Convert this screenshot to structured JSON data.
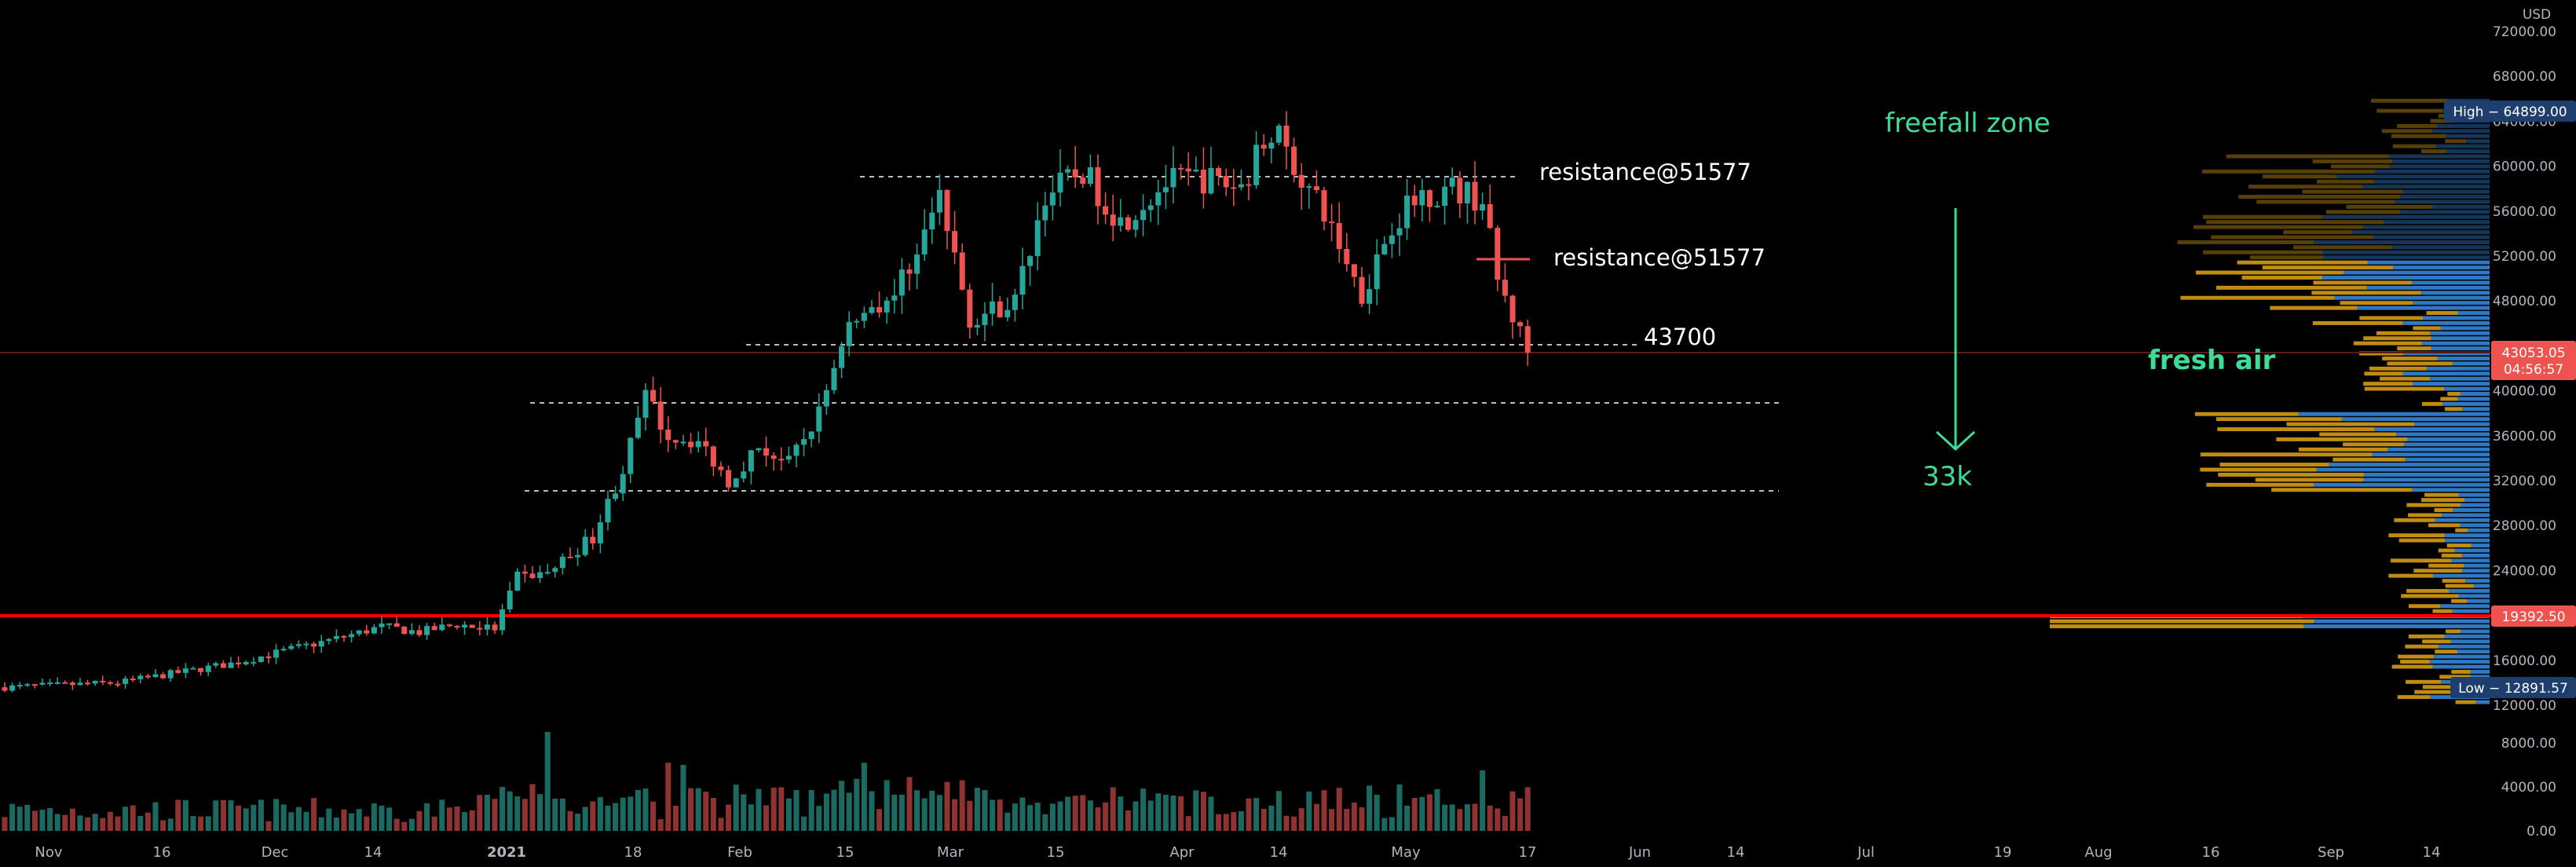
{
  "chart_data": {
    "type": "candlestick",
    "title": "",
    "xlabel": "",
    "ylabel": "",
    "currency": "USD",
    "ylim": [
      0,
      76000
    ],
    "price_ylim": [
      12000,
      76000
    ],
    "volume_ylim": [
      0,
      9500
    ],
    "price_ticks": [
      "72000.00",
      "68000.00",
      "64000.00",
      "60000.00",
      "56000.00",
      "52000.00",
      "48000.00",
      "44000.00",
      "40000.00",
      "36000.00",
      "32000.00",
      "28000.00",
      "24000.00",
      "20000.00",
      "16000.00",
      "12000.00"
    ],
    "volume_ticks": [
      "8000.00",
      "4000.00",
      "0.00"
    ],
    "x_ticks": [
      "Nov",
      "16",
      "Dec",
      "14",
      "2021",
      "18",
      "Feb",
      "15",
      "Mar",
      "15",
      "Apr",
      "14",
      "May",
      "17",
      "Jun",
      "14",
      "Jul",
      "19",
      "Aug",
      "16",
      "Sep",
      "14"
    ],
    "price_labels": {
      "high": "High − 64899.00",
      "current_price": "43053.05",
      "countdown": "04:56:57",
      "support_level": "19392.50",
      "low": "Low − 12891.57"
    },
    "key_prices": {
      "high": 64899.0,
      "current": 43053.05,
      "support": 19392.5,
      "low": 12891.57,
      "resistance": 51577,
      "level": 43700,
      "target": 33000
    },
    "annotations": {
      "resistance_top": "resistance@51577",
      "resistance_mid": "resistance@51577",
      "level_43700": "43700",
      "freefall": "freefall zone",
      "target": "33k",
      "fresh_air": "fresh air"
    },
    "close_path": [
      [
        0,
        13600
      ],
      [
        15,
        14000
      ],
      [
        30,
        15700
      ],
      [
        45,
        18100
      ],
      [
        50,
        19000
      ],
      [
        55,
        18500
      ],
      [
        60,
        19200
      ],
      [
        65,
        18800
      ],
      [
        68,
        23400
      ],
      [
        72,
        23800
      ],
      [
        78,
        27000
      ],
      [
        82,
        33000
      ],
      [
        85,
        39500
      ],
      [
        88,
        36000
      ],
      [
        92,
        35500
      ],
      [
        96,
        32000
      ],
      [
        100,
        35000
      ],
      [
        104,
        33500
      ],
      [
        108,
        38000
      ],
      [
        112,
        46500
      ],
      [
        118,
        48500
      ],
      [
        124,
        57000
      ],
      [
        128,
        46500
      ],
      [
        134,
        48000
      ],
      [
        138,
        57500
      ],
      [
        143,
        59500
      ],
      [
        148,
        55000
      ],
      [
        154,
        58500
      ],
      [
        158,
        59000
      ],
      [
        164,
        58200
      ],
      [
        168,
        63500
      ],
      [
        172,
        59000
      ],
      [
        176,
        54500
      ],
      [
        180,
        48500
      ],
      [
        184,
        55000
      ],
      [
        188,
        57500
      ],
      [
        192,
        58000
      ],
      [
        196,
        57000
      ],
      [
        198,
        49800
      ],
      [
        202,
        43500
      ]
    ],
    "volume_profile_range": [
      12000,
      66000
    ],
    "colors": {
      "background": "#000000",
      "up": "#26a69a",
      "down": "#ef5350",
      "volume_up": "#1b6a62",
      "volume_down": "#8e3232",
      "support_line": "#ff0000",
      "annotation": "#ffffff",
      "arrow": "#3ddc97",
      "profile_up": "#2f78c4",
      "profile_down": "#c08d12",
      "high_low_label": "#1e3f6e",
      "axis_text": "#b2b5be"
    }
  }
}
